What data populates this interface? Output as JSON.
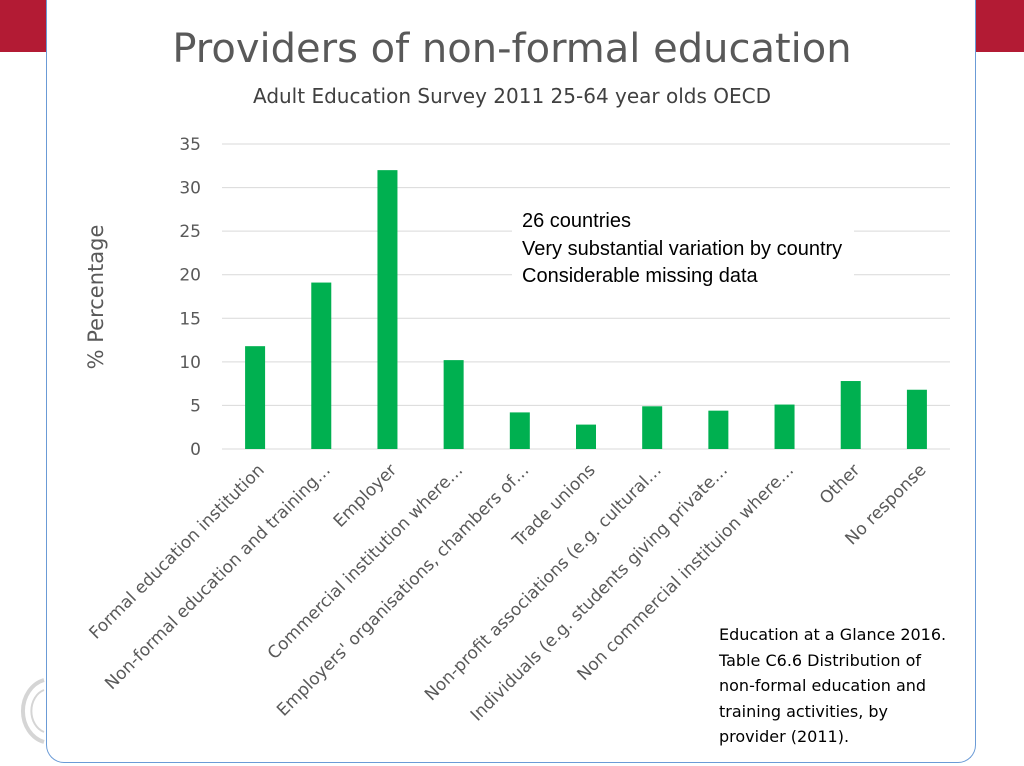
{
  "chart_data": {
    "type": "bar",
    "title": "Providers of non-formal education",
    "subtitle": "Adult Education Survey 2011 25-64 year olds OECD",
    "ylabel": "% Percentage",
    "xlabel": "",
    "ylim": [
      0,
      35
    ],
    "yticks": [
      0,
      5,
      10,
      15,
      20,
      25,
      30,
      35
    ],
    "grid": true,
    "bar_color": "#00b050",
    "categories": [
      "Formal education institution",
      "Non-formal education and training…",
      "Employer",
      "Commercial institution where…",
      "Employers' organisations, chambers of…",
      "Trade unions",
      "Non-profit associations (e.g. cultural…",
      "Individuals (e.g. students giving private…",
      "Non commercial instituion where…",
      "Other",
      "No response"
    ],
    "values": [
      11.8,
      19.1,
      32.0,
      10.2,
      4.2,
      2.8,
      4.9,
      4.4,
      5.1,
      7.8,
      6.8
    ]
  },
  "annotation": {
    "lines": [
      "26 countries",
      "Very substantial variation by country",
      "Considerable missing data"
    ]
  },
  "source": {
    "lines": [
      "Education at a Glance 2016.",
      "Table C6.6  Distribution of",
      "non-formal education and",
      "training activities, by",
      "provider (2011)."
    ]
  },
  "colors": {
    "accent_red": "#b31b34",
    "frame_blue": "#6b9bd6"
  }
}
